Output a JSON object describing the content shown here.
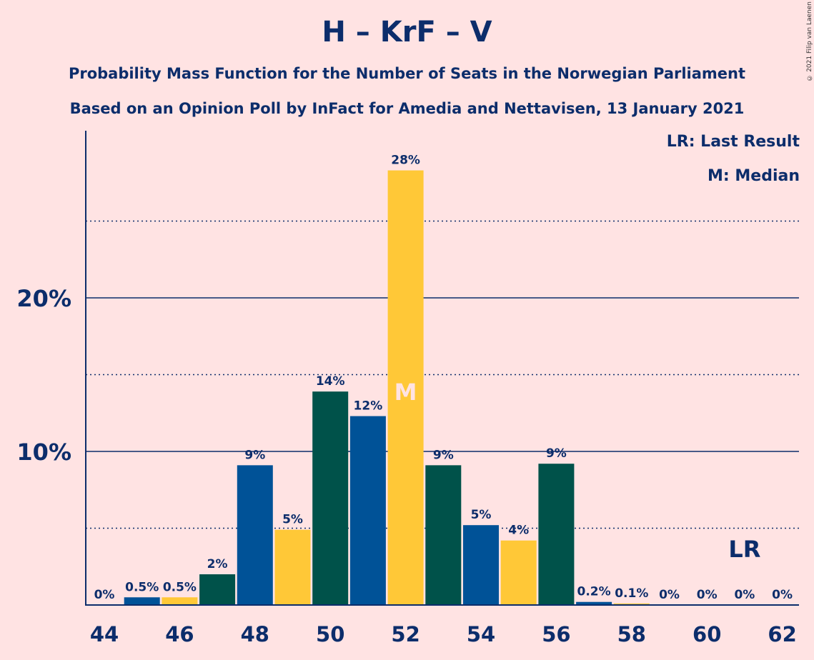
{
  "title": "H – KrF – V",
  "subtitle1": "Probability Mass Function for the Number of Seats in the Norwegian Parliament",
  "subtitle2": "Based on an Opinion Poll by InFact for Amedia and Nettavisen, 13 January 2021",
  "copyright": "© 2021 Filip van Laenen",
  "legend": {
    "lr": "LR: Last Result",
    "m": "M: Median"
  },
  "colors": {
    "blue": "#005297",
    "yellow": "#FFC837",
    "green": "#00524A",
    "background": "#FFE3E3",
    "text": "#0C2D6B"
  },
  "chart_data": {
    "type": "bar",
    "x": [
      44,
      45,
      46,
      47,
      48,
      49,
      50,
      51,
      52,
      53,
      54,
      55,
      56,
      57,
      58,
      59,
      60,
      61,
      62
    ],
    "values": [
      0,
      0.5,
      0.5,
      2,
      9.1,
      4.9,
      13.9,
      12.3,
      28.3,
      9.1,
      5.2,
      4.2,
      9.2,
      0.2,
      0.1,
      0,
      0,
      0,
      0
    ],
    "labels": [
      "0%",
      "0.5%",
      "0.5%",
      "2%",
      "9%",
      "5%",
      "14%",
      "12%",
      "28%",
      "9%",
      "5%",
      "4%",
      "9%",
      "0.2%",
      "0.1%",
      "0%",
      "0%",
      "0%",
      "0%"
    ],
    "colors": [
      "blue",
      "blue",
      "yellow",
      "green",
      "blue",
      "yellow",
      "green",
      "blue",
      "yellow",
      "green",
      "blue",
      "yellow",
      "green",
      "blue",
      "yellow",
      "green",
      "blue",
      "yellow",
      "green"
    ],
    "x_ticks": [
      "44",
      "46",
      "48",
      "50",
      "52",
      "54",
      "56",
      "58",
      "60",
      "62"
    ],
    "y_ticks": [
      {
        "value": 10,
        "label": "10%"
      },
      {
        "value": 20,
        "label": "20%"
      }
    ],
    "minor_gridlines": [
      5,
      15,
      25
    ],
    "ylim": [
      0,
      31
    ],
    "median_seat": 52,
    "median_marker": "M",
    "last_result_seat": 61,
    "last_result_marker": "LR"
  }
}
